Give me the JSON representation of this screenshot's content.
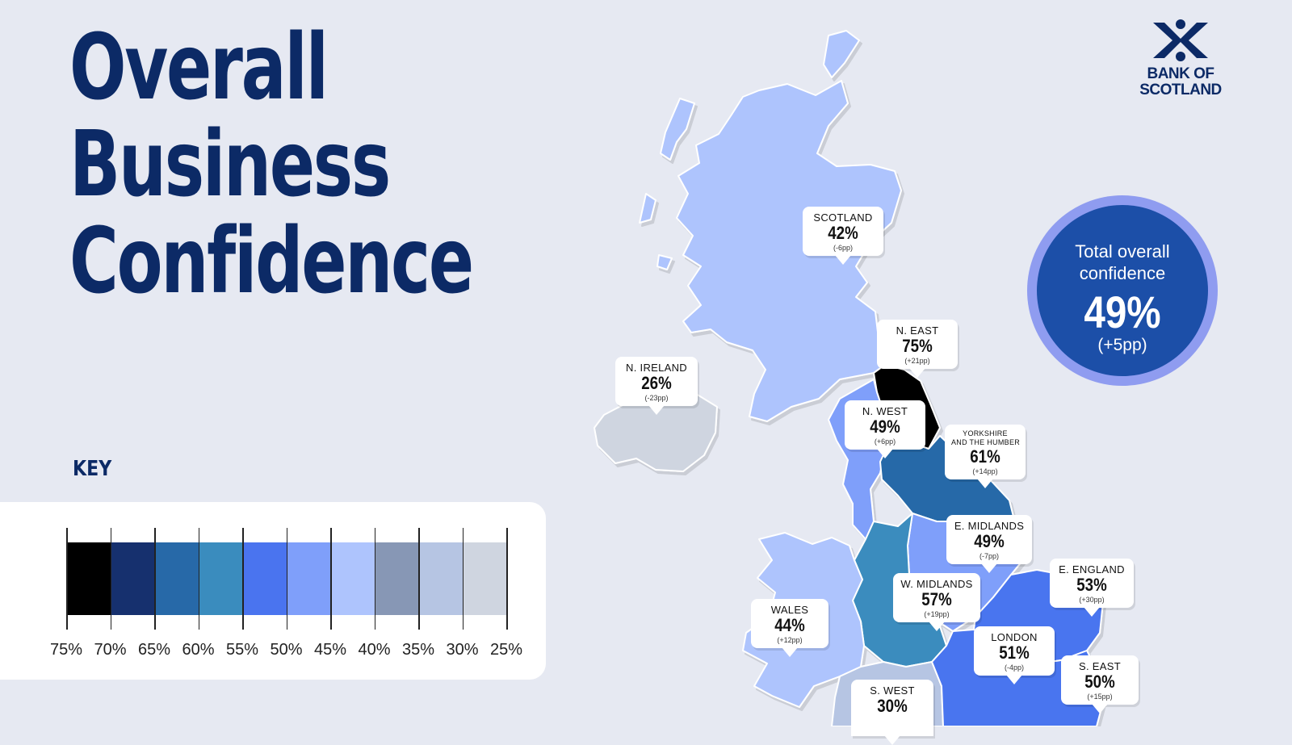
{
  "title": {
    "line1": "Overall",
    "line2": "Business",
    "line3": "Confidence"
  },
  "key": {
    "label": "KEY",
    "ticks": [
      "75%",
      "70%",
      "65%",
      "60%",
      "55%",
      "50%",
      "45%",
      "40%",
      "35%",
      "30%",
      "25%"
    ],
    "colors": [
      "#000000",
      "#16306e",
      "#2769a8",
      "#3a8cbe",
      "#4a74ef",
      "#7f9ffa",
      "#aec4fd",
      "#8797b5",
      "#b6c5e3",
      "#cfd5e0"
    ]
  },
  "total": {
    "label_line1": "Total overall",
    "label_line2": "confidence",
    "value": "49%",
    "change": "(+5pp)"
  },
  "logo": {
    "line1": "BANK OF",
    "line2": "SCOTLAND",
    "icon": "saltire-x-icon"
  },
  "regions": {
    "scotland": {
      "name": "SCOTLAND",
      "value": "42%",
      "change": "(-6pp)",
      "color": "#aec4fd"
    },
    "n_ireland": {
      "name": "N. IRELAND",
      "value": "26%",
      "change": "(-23pp)",
      "color": "#cfd5e0"
    },
    "n_east": {
      "name": "N. EAST",
      "value": "75%",
      "change": "(+21pp)",
      "color": "#000000"
    },
    "n_west": {
      "name": "N. WEST",
      "value": "49%",
      "change": "(+6pp)",
      "color": "#7f9ffa"
    },
    "yorkshire": {
      "name1": "YORKSHIRE",
      "name2": "AND THE HUMBER",
      "value": "61%",
      "change": "(+14pp)",
      "color": "#2769a8"
    },
    "e_midlands": {
      "name": "E. MIDLANDS",
      "value": "49%",
      "change": "(-7pp)",
      "color": "#7f9ffa"
    },
    "w_midlands": {
      "name": "W. MIDLANDS",
      "value": "57%",
      "change": "(+19pp)",
      "color": "#3a8cbe"
    },
    "wales": {
      "name": "WALES",
      "value": "44%",
      "change": "(+12pp)",
      "color": "#aec4fd"
    },
    "e_england": {
      "name": "E. ENGLAND",
      "value": "53%",
      "change": "(+30pp)",
      "color": "#4a74ef"
    },
    "london": {
      "name": "LONDON",
      "value": "51%",
      "change": "(-4pp)",
      "color": "#4a74ef"
    },
    "s_east": {
      "name": "S. EAST",
      "value": "50%",
      "change": "(+15pp)",
      "color": "#4a74ef"
    },
    "s_west": {
      "name": "S. WEST",
      "value": "30%",
      "color": "#b6c5e3"
    }
  }
}
